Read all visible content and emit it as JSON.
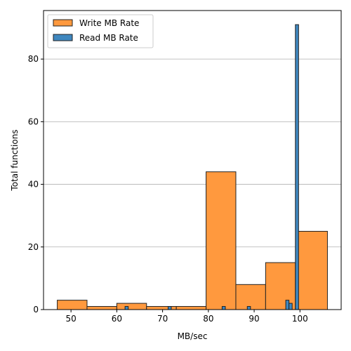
{
  "chart_data": {
    "type": "bar",
    "xlabel": "MB/sec",
    "ylabel": "Total functions",
    "xlim": [
      44.0,
      109.0
    ],
    "ylim": [
      0,
      95.5
    ],
    "xticks": [
      50,
      60,
      70,
      80,
      90,
      100
    ],
    "yticks": [
      0,
      20,
      40,
      60,
      80
    ],
    "grid": "y",
    "legend_position": "top-left",
    "series": [
      {
        "name": "Write MB Rate",
        "color": "#ff993e",
        "bins": [
          {
            "x0": 47.0,
            "x1": 53.5,
            "count": 3
          },
          {
            "x0": 53.5,
            "x1": 60.0,
            "count": 1
          },
          {
            "x0": 60.0,
            "x1": 66.5,
            "count": 2
          },
          {
            "x0": 66.5,
            "x1": 73.0,
            "count": 1
          },
          {
            "x0": 73.0,
            "x1": 79.5,
            "count": 1
          },
          {
            "x0": 79.5,
            "x1": 86.0,
            "count": 44
          },
          {
            "x0": 86.0,
            "x1": 92.5,
            "count": 8
          },
          {
            "x0": 92.5,
            "x1": 99.0,
            "count": 15
          },
          {
            "x0": 99.6,
            "x1": 106.0,
            "count": 25
          }
        ]
      },
      {
        "name": "Read MB Rate",
        "color": "#3f87bf",
        "bins": [
          {
            "x0": 61.8,
            "x1": 62.5,
            "count": 1
          },
          {
            "x0": 71.2,
            "x1": 71.9,
            "count": 1
          },
          {
            "x0": 83.0,
            "x1": 83.7,
            "count": 1
          },
          {
            "x0": 88.5,
            "x1": 89.2,
            "count": 1
          },
          {
            "x0": 96.9,
            "x1": 97.6,
            "count": 3
          },
          {
            "x0": 97.6,
            "x1": 98.3,
            "count": 2
          },
          {
            "x0": 99.0,
            "x1": 99.7,
            "count": 91
          }
        ]
      }
    ]
  }
}
